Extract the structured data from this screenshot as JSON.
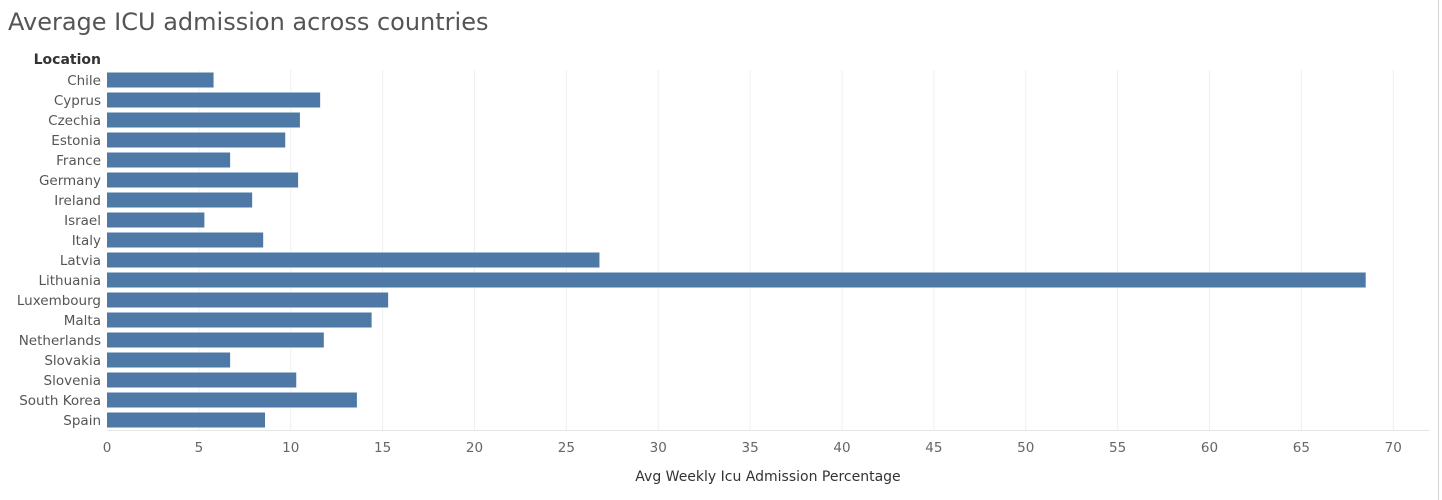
{
  "chart_data": {
    "type": "bar",
    "orientation": "horizontal",
    "title": "Average ICU admission across countries",
    "row_header": "Location",
    "xlabel": "Avg Weekly Icu Admission Percentage",
    "categories": [
      "Chile",
      "Cyprus",
      "Czechia",
      "Estonia",
      "France",
      "Germany",
      "Ireland",
      "Israel",
      "Italy",
      "Latvia",
      "Lithuania",
      "Luxembourg",
      "Malta",
      "Netherlands",
      "Slovakia",
      "Slovenia",
      "South Korea",
      "Spain"
    ],
    "values": [
      5.8,
      11.6,
      10.5,
      9.7,
      6.7,
      10.4,
      7.9,
      5.3,
      8.5,
      26.8,
      68.5,
      15.3,
      14.4,
      11.8,
      6.7,
      10.3,
      13.6,
      8.6
    ],
    "xlim": [
      0,
      72
    ],
    "xticks": [
      0,
      5,
      10,
      15,
      20,
      25,
      30,
      35,
      40,
      45,
      50,
      55,
      60,
      65,
      70
    ],
    "grid": "vertical",
    "bar_color": "#4e79a7"
  }
}
